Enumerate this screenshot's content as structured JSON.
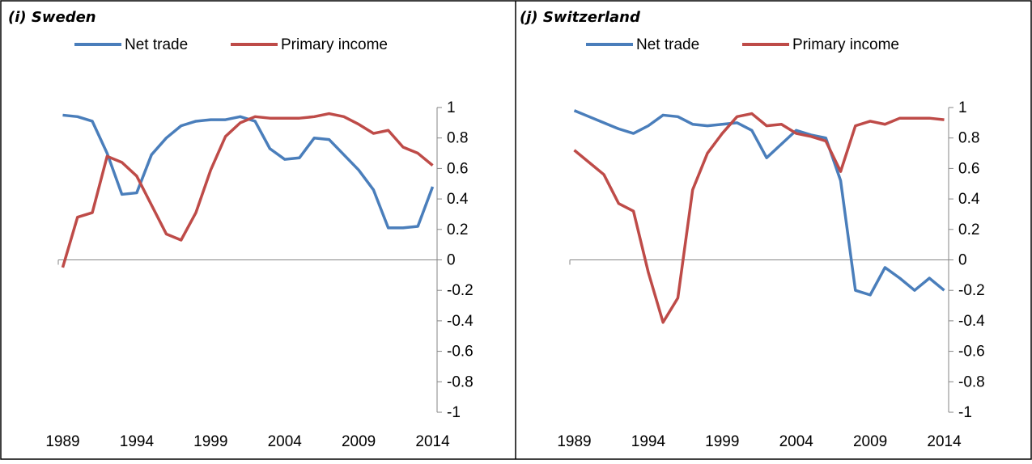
{
  "chart_data": [
    {
      "type": "line",
      "title": "(i) Sweden",
      "x": [
        1989,
        1990,
        1991,
        1992,
        1993,
        1994,
        1995,
        1996,
        1997,
        1998,
        1999,
        2000,
        2001,
        2002,
        2003,
        2004,
        2005,
        2006,
        2007,
        2008,
        2009,
        2010,
        2011,
        2012,
        2013,
        2014
      ],
      "xlim": [
        1988.7,
        2014.3
      ],
      "xticks": [
        1989,
        1994,
        1999,
        2004,
        2009,
        2014
      ],
      "ylim": [
        -1,
        1
      ],
      "yticks": [
        -1,
        -0.8,
        -0.6,
        -0.4,
        -0.2,
        0,
        0.2,
        0.4,
        0.6,
        0.8,
        1
      ],
      "series": [
        {
          "name": "Net trade",
          "color": "#4a7ebb",
          "values": [
            0.95,
            0.94,
            0.91,
            0.7,
            0.43,
            0.44,
            0.69,
            0.8,
            0.88,
            0.91,
            0.92,
            0.92,
            0.94,
            0.91,
            0.73,
            0.66,
            0.67,
            0.8,
            0.79,
            0.69,
            0.59,
            0.46,
            0.21,
            0.21,
            0.22,
            0.48
          ]
        },
        {
          "name": "Primary income",
          "color": "#be4b48",
          "values": [
            -0.05,
            0.28,
            0.31,
            0.68,
            0.64,
            0.55,
            0.36,
            0.17,
            0.13,
            0.31,
            0.59,
            0.81,
            0.9,
            0.94,
            0.93,
            0.93,
            0.93,
            0.94,
            0.96,
            0.94,
            0.89,
            0.83,
            0.85,
            0.74,
            0.7,
            0.62
          ]
        }
      ]
    },
    {
      "type": "line",
      "title": "(j) Switzerland",
      "x": [
        1989,
        1990,
        1991,
        1992,
        1993,
        1994,
        1995,
        1996,
        1997,
        1998,
        1999,
        2000,
        2001,
        2002,
        2003,
        2004,
        2005,
        2006,
        2007,
        2008,
        2009,
        2010,
        2011,
        2012,
        2013,
        2014
      ],
      "xlim": [
        1988.7,
        2014.3
      ],
      "xticks": [
        1989,
        1994,
        1999,
        2004,
        2009,
        2014
      ],
      "ylim": [
        -1,
        1
      ],
      "yticks": [
        -1,
        -0.8,
        -0.6,
        -0.4,
        -0.2,
        0,
        0.2,
        0.4,
        0.6,
        0.8,
        1
      ],
      "series": [
        {
          "name": "Net trade",
          "color": "#4a7ebb",
          "values": [
            0.98,
            0.94,
            0.9,
            0.86,
            0.83,
            0.88,
            0.95,
            0.94,
            0.89,
            0.88,
            0.89,
            0.9,
            0.85,
            0.67,
            0.76,
            0.85,
            0.82,
            0.8,
            0.52,
            -0.2,
            -0.23,
            -0.05,
            -0.12,
            -0.2,
            -0.12,
            -0.2
          ]
        },
        {
          "name": "Primary income",
          "color": "#be4b48",
          "values": [
            0.72,
            0.64,
            0.56,
            0.37,
            0.32,
            -0.08,
            -0.41,
            -0.25,
            0.46,
            0.7,
            0.83,
            0.94,
            0.96,
            0.88,
            0.89,
            0.83,
            0.81,
            0.78,
            0.58,
            0.88,
            0.91,
            0.89,
            0.93,
            0.93,
            0.93,
            0.92
          ]
        }
      ]
    }
  ]
}
